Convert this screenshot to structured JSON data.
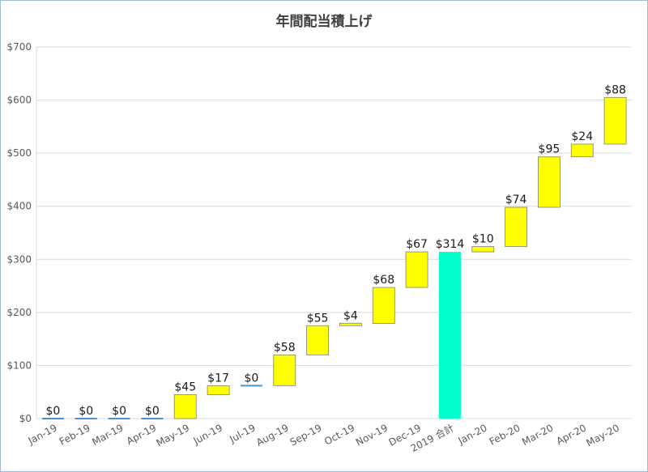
{
  "chart_data": {
    "type": "bar",
    "subtype": "waterfall",
    "title": "年間配当積上げ",
    "xlabel": "",
    "ylabel": "",
    "ylim": [
      0,
      700
    ],
    "yticks": [
      "$0",
      "$100",
      "$200",
      "$300",
      "$400",
      "$500",
      "$600",
      "$700"
    ],
    "ytick_values": [
      0,
      100,
      200,
      300,
      400,
      500,
      600,
      700
    ],
    "grid": true,
    "categories": [
      "Jan-19",
      "Feb-19",
      "Mar-19",
      "Apr-19",
      "May-19",
      "Jun-19",
      "Jul-19",
      "Aug-19",
      "Sep-19",
      "Oct-19",
      "Nov-19",
      "Dec-19",
      "2019 合計",
      "Jan-20",
      "Feb-20",
      "Mar-20",
      "Apr-20",
      "May-20"
    ],
    "values": [
      0,
      0,
      0,
      0,
      45,
      17,
      0,
      58,
      55,
      4,
      68,
      67,
      314,
      10,
      74,
      95,
      24,
      88
    ],
    "base": [
      0,
      0,
      0,
      0,
      0,
      45,
      62,
      62,
      120,
      175,
      179,
      247,
      0,
      314,
      324,
      398,
      493,
      517
    ],
    "labels": [
      "$0",
      "$0",
      "$0",
      "$0",
      "$45",
      "$17",
      "$0",
      "$58",
      "$55",
      "$4",
      "$68",
      "$67",
      "$314",
      "$10",
      "$74",
      "$95",
      "$24",
      "$88"
    ],
    "kinds": [
      "inc",
      "inc",
      "inc",
      "inc",
      "inc",
      "inc",
      "inc",
      "inc",
      "inc",
      "inc",
      "inc",
      "inc",
      "total",
      "inc",
      "inc",
      "inc",
      "inc",
      "inc"
    ],
    "colors": {
      "increase": "#ffff00",
      "increase_border": "#7f7f7f",
      "total": "#00ffcc",
      "zero_line": "#4a90d9",
      "grid": "#d9d9d9"
    }
  }
}
